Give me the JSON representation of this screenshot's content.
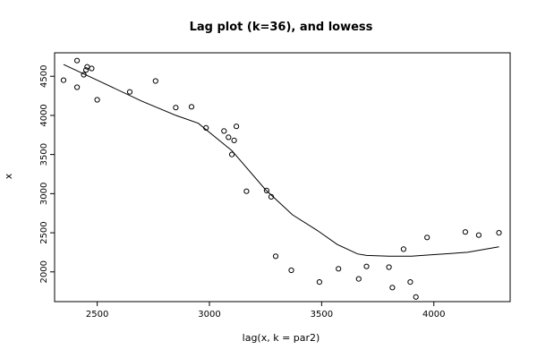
{
  "chart_data": {
    "type": "scatter",
    "title": "Lag plot (k=36), and lowess",
    "xlabel": "lag(x, k = par2)",
    "ylabel": "x",
    "xlim": [
      2310,
      4340
    ],
    "ylim": [
      1620,
      4800
    ],
    "x_ticks": [
      2500,
      3000,
      3500,
      4000
    ],
    "y_ticks": [
      2000,
      2500,
      3000,
      3500,
      4000,
      4500
    ],
    "colors": {
      "points": "#000000",
      "line": "#000000",
      "frame": "#000000"
    },
    "series": [
      {
        "type": "scatter",
        "points": [
          [
            2350,
            4450
          ],
          [
            2410,
            4700
          ],
          [
            2410,
            4360
          ],
          [
            2440,
            4520
          ],
          [
            2450,
            4580
          ],
          [
            2455,
            4620
          ],
          [
            2475,
            4600
          ],
          [
            2500,
            4200
          ],
          [
            2645,
            4300
          ],
          [
            2760,
            4440
          ],
          [
            2850,
            4100
          ],
          [
            2920,
            4110
          ],
          [
            2985,
            3840
          ],
          [
            3065,
            3800
          ],
          [
            3085,
            3720
          ],
          [
            3100,
            3500
          ],
          [
            3110,
            3680
          ],
          [
            3120,
            3860
          ],
          [
            3165,
            3030
          ],
          [
            3255,
            3040
          ],
          [
            3275,
            2960
          ],
          [
            3295,
            2200
          ],
          [
            3365,
            2020
          ],
          [
            3490,
            1870
          ],
          [
            3575,
            2040
          ],
          [
            3665,
            1910
          ],
          [
            3700,
            2070
          ],
          [
            3800,
            2060
          ],
          [
            3815,
            1800
          ],
          [
            3865,
            2290
          ],
          [
            3895,
            1870
          ],
          [
            3920,
            1680
          ],
          [
            3970,
            2440
          ],
          [
            4140,
            2510
          ],
          [
            4200,
            2470
          ],
          [
            4290,
            2500
          ]
        ]
      },
      {
        "type": "line",
        "points": [
          [
            2350,
            4650
          ],
          [
            2500,
            4450
          ],
          [
            2700,
            4180
          ],
          [
            2850,
            4000
          ],
          [
            2950,
            3900
          ],
          [
            3100,
            3550
          ],
          [
            3250,
            3050
          ],
          [
            3370,
            2730
          ],
          [
            3480,
            2530
          ],
          [
            3570,
            2350
          ],
          [
            3660,
            2230
          ],
          [
            3700,
            2210
          ],
          [
            3800,
            2200
          ],
          [
            3900,
            2200
          ],
          [
            4000,
            2220
          ],
          [
            4150,
            2250
          ],
          [
            4290,
            2320
          ]
        ]
      }
    ]
  }
}
